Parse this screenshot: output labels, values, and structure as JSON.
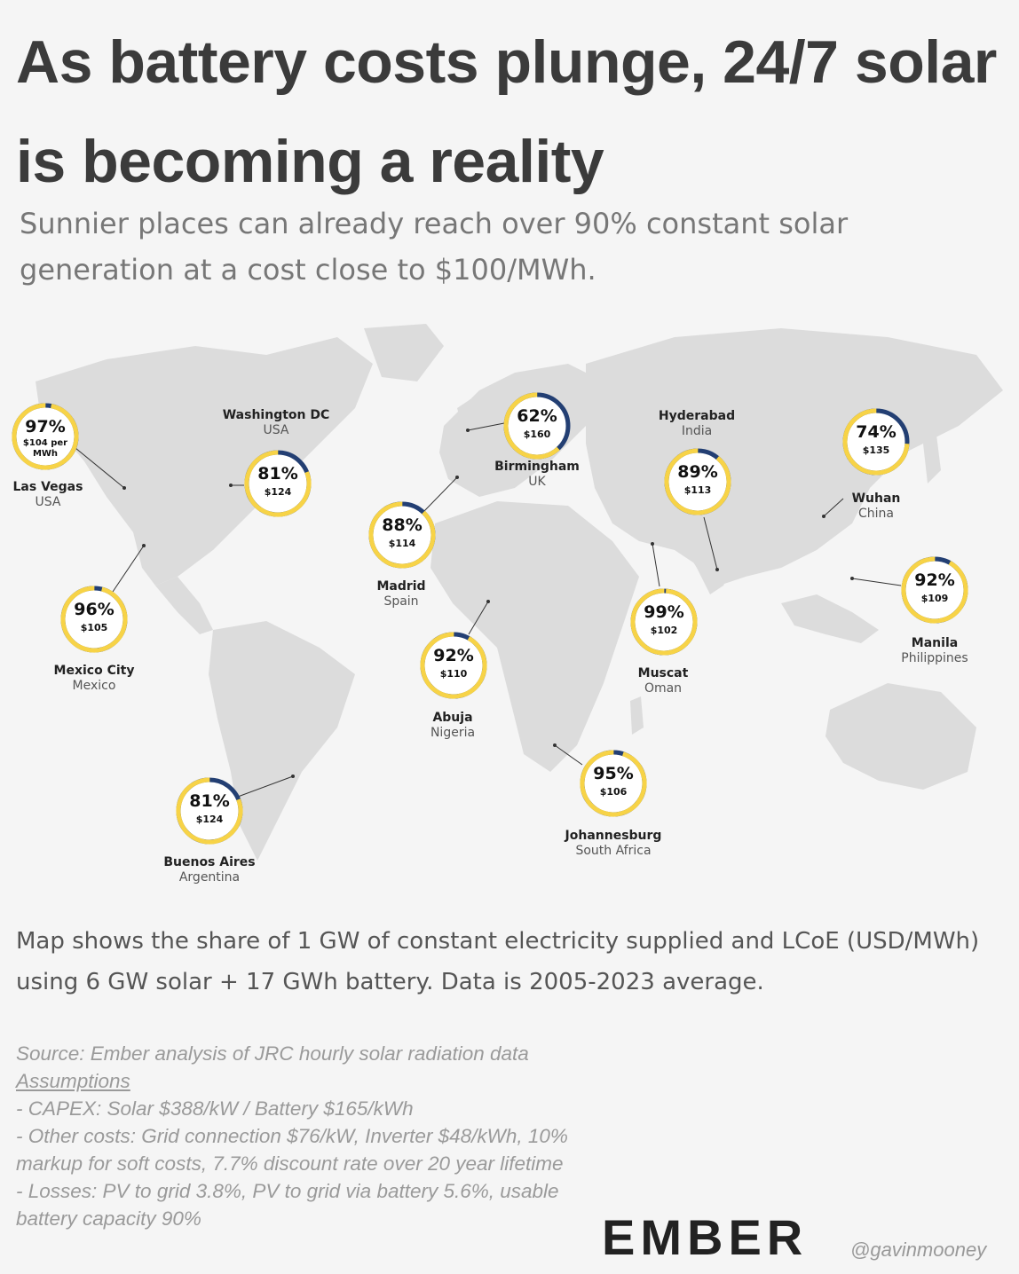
{
  "title": "As battery costs plunge, 24/7 solar is becoming a reality",
  "subtitle": "Sunnier places can already reach over 90% constant solar generation at a cost close to $100/MWh.",
  "colors": {
    "share": "#f7d347",
    "remaining": "#233f73",
    "land": "#dcdcdc",
    "background": "#f5f5f5"
  },
  "cities": [
    {
      "id": "las-vegas",
      "name": "Las Vegas",
      "country": "USA",
      "share": 97,
      "share_label": "97%",
      "cost_label": "$104 per MWh"
    },
    {
      "id": "washington",
      "name": "Washington DC",
      "country": "USA",
      "share": 81,
      "share_label": "81%",
      "cost_label": "$124"
    },
    {
      "id": "mexico-city",
      "name": "Mexico City",
      "country": "Mexico",
      "share": 96,
      "share_label": "96%",
      "cost_label": "$105"
    },
    {
      "id": "buenos-aires",
      "name": "Buenos Aires",
      "country": "Argentina",
      "share": 81,
      "share_label": "81%",
      "cost_label": "$124"
    },
    {
      "id": "birmingham",
      "name": "Birmingham",
      "country": "UK",
      "share": 62,
      "share_label": "62%",
      "cost_label": "$160"
    },
    {
      "id": "madrid",
      "name": "Madrid",
      "country": "Spain",
      "share": 88,
      "share_label": "88%",
      "cost_label": "$114"
    },
    {
      "id": "abuja",
      "name": "Abuja",
      "country": "Nigeria",
      "share": 92,
      "share_label": "92%",
      "cost_label": "$110"
    },
    {
      "id": "johannesburg",
      "name": "Johannesburg",
      "country": "South Africa",
      "share": 95,
      "share_label": "95%",
      "cost_label": "$106"
    },
    {
      "id": "hyderabad",
      "name": "Hyderabad",
      "country": "India",
      "share": 89,
      "share_label": "89%",
      "cost_label": "$113"
    },
    {
      "id": "muscat",
      "name": "Muscat",
      "country": "Oman",
      "share": 99,
      "share_label": "99%",
      "cost_label": "$102"
    },
    {
      "id": "wuhan",
      "name": "Wuhan",
      "country": "China",
      "share": 74,
      "share_label": "74%",
      "cost_label": "$135"
    },
    {
      "id": "manila",
      "name": "Manila",
      "country": "Philippines",
      "share": 92,
      "share_label": "92%",
      "cost_label": "$109"
    }
  ],
  "note": "Map shows the share of 1 GW of constant electricity supplied and LCoE (USD/MWh) using 6 GW solar + 17 GWh battery. Data is 2005-2023 average.",
  "source": {
    "line": "Source: Ember analysis of JRC hourly solar radiation data",
    "assumptions_heading": "Assumptions",
    "items": [
      "- CAPEX: Solar $388/kW / Battery $165/kWh",
      "- Other costs: Grid connection $76/kW, Inverter $48/kWh, 10% markup for soft costs, 7.7% discount rate over 20 year lifetime",
      "- Losses: PV to grid 3.8%, PV to grid via battery 5.6%, usable battery capacity 90%"
    ]
  },
  "logo": "EMBER",
  "handle": "@gavinmooney"
}
